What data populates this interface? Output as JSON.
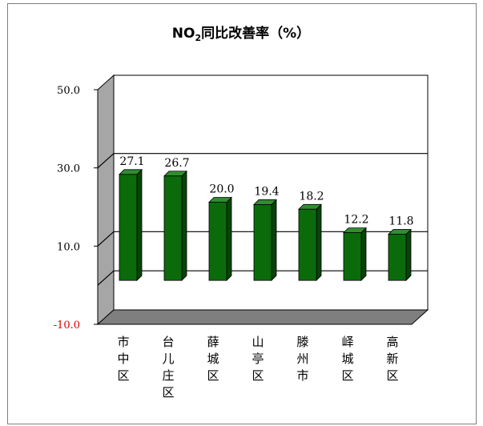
{
  "chart_data": {
    "type": "bar",
    "title": "NO₂同比改善率（%）",
    "categories": [
      "市中区",
      "台儿庄区",
      "薛城区",
      "山亭区",
      "滕州市",
      "峄城区",
      "高新区"
    ],
    "values": [
      27.1,
      26.7,
      20.0,
      19.4,
      18.2,
      12.2,
      11.8
    ],
    "data_labels": [
      "27.1",
      "26.7",
      "20.0",
      "19.4",
      "18.2",
      "12.2",
      "11.8"
    ],
    "y_ticks": [
      50.0,
      30.0,
      10.0,
      -10.0
    ],
    "y_tick_labels": [
      "50.0",
      "30.0",
      "10.0",
      "-10.0"
    ],
    "ylim": [
      -10,
      50
    ],
    "grid": true,
    "style": "3d-columns",
    "colors": {
      "bar_front": "#0b6b0b",
      "bar_top": "#2f8f2f",
      "bar_side": "#064506",
      "back_wall": "#ffffff",
      "side_wall": "#a6a6a6",
      "floor": "#7f7f7f",
      "negative_tick": "#e00000",
      "tick": "#000000"
    }
  }
}
